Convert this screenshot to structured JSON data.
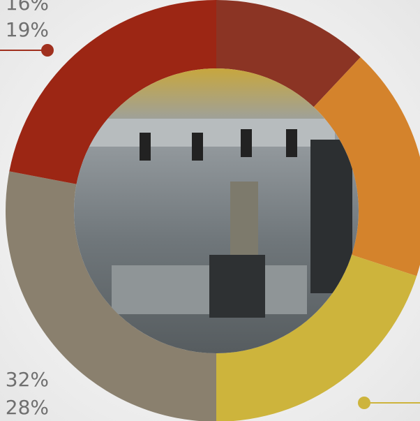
{
  "chart_data": {
    "type": "donut",
    "categories": [
      null,
      null,
      null,
      null,
      null
    ],
    "values": [
      12,
      18,
      20,
      28,
      22
    ],
    "colors": [
      "#8b3424",
      "#d4832c",
      "#cdb43c",
      "#8a806e",
      "#9c2614"
    ],
    "annotations": [
      "16%",
      "19%",
      "32%",
      "28%"
    ]
  }
}
